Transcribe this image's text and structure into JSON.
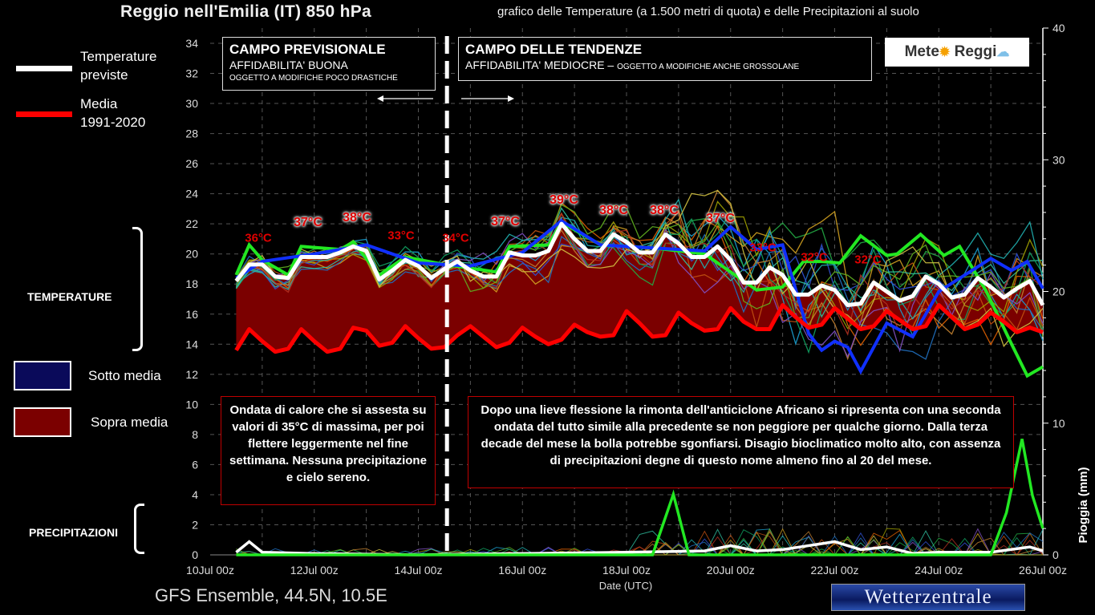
{
  "title": {
    "main": "Reggio nell'Emilia  (IT)  850 hPa",
    "sub": "grafico delle Temperature  (a 1.500 metri di quota) e delle Precipitazioni al suolo"
  },
  "legend": {
    "forecast_label_1": "Temperature",
    "forecast_label_2": "previste",
    "mean_label_1": "Media",
    "mean_label_2": "1991-2020",
    "below_label": "Sotto media",
    "above_label": "Sopra media",
    "temperature_section": "TEMPERATURE",
    "precip_section": "PRECIPITAZIONI"
  },
  "boxes": {
    "forecast": {
      "title": "CAMPO PREVISIONALE",
      "reliability": "AFFIDABILITA' BUONA",
      "note": "OGGETTO A MODIFICHE POCO DRASTICHE"
    },
    "trend": {
      "title": "CAMPO DELLE TENDENZE",
      "reliability": "AFFIDABILITA' MEDIOCRE",
      "dash": " – ",
      "note": "OGGETTO A MODIFICHE ANCHE GROSSOLANE"
    }
  },
  "logo": {
    "left": "Mete",
    "right": "Reggi"
  },
  "annotations": {
    "left": "Ondata di calore che si assesta su valori di 35°C di massima, per poi flettere leggermente nel fine settimana. Nessuna precipitazione e cielo sereno.",
    "right": "Dopo una lieve flessione la rimonta dell'anticiclone Africano si ripresenta con una seconda ondata del tutto simile alla precedente se non peggiore per qualche giorno. Dalla terza decade del mese la bolla potrebbe sgonfiarsi. Disagio bioclimatico molto alto, con assenza di precipitazioni degne di questo nome almeno fino al 20 del mese."
  },
  "max_temp_labels": [
    "36°C",
    "37°C",
    "38°C",
    "33°C",
    "34°C",
    "37°C",
    "39°C",
    "38°C",
    "38°C",
    "37°C",
    "33°C",
    "32°C",
    "32°C"
  ],
  "footer": {
    "model": "GFS Ensemble, 44.5N, 10.5E",
    "source": "Wetterzentrale"
  },
  "colors": {
    "forecast": "#ffffff",
    "mean": "#ff0000",
    "above": "#7b0000",
    "below": "#0a0a5a",
    "grid": "#555555"
  },
  "chart_data": {
    "type": "line",
    "title": "Reggio nell'Emilia (IT) 850 hPa",
    "xlabel": "Date (UTC)",
    "ylabel": "",
    "y2label": "Pioggia (mm)",
    "xlim": [
      0,
      16
    ],
    "ylim": [
      0,
      34
    ],
    "y2lim": [
      0,
      40
    ],
    "xticks": [
      {
        "d": 0,
        "label": "10Jul 00z"
      },
      {
        "d": 2,
        "label": "12Jul 00z"
      },
      {
        "d": 4,
        "label": "14Jul 00z"
      },
      {
        "d": 6,
        "label": "16Jul 00z"
      },
      {
        "d": 8,
        "label": "18Jul 00z"
      },
      {
        "d": 10,
        "label": "20Jul 00z"
      },
      {
        "d": 12,
        "label": "22Jul 00z"
      },
      {
        "d": 14,
        "label": "24Jul 00z"
      },
      {
        "d": 16,
        "label": "26Jul 00z"
      }
    ],
    "yticks": [
      0,
      2,
      4,
      6,
      8,
      10,
      12,
      14,
      16,
      18,
      20,
      22,
      24,
      26,
      28,
      30,
      32,
      34
    ],
    "y2ticks": [
      0,
      10,
      20,
      30,
      40
    ],
    "grid": true,
    "forecast_boundary_day": 4.55,
    "x_start_day": 0.5,
    "x_step_days": 0.25,
    "series": [
      {
        "name": "Temperature previste",
        "values": [
          18.2,
          19.3,
          19.3,
          18.5,
          18.4,
          19.8,
          19.8,
          19.8,
          20.1,
          20.5,
          20.2,
          18.3,
          18.9,
          19.6,
          19.2,
          18.4,
          19.0,
          19.5,
          18.9,
          18.5,
          18.5,
          20.1,
          19.9,
          19.9,
          20.2,
          22.0,
          21.0,
          20.2,
          20.2,
          21.3,
          20.8,
          20.1,
          20.1,
          21.3,
          20.7,
          19.8,
          19.8,
          20.5,
          19.6,
          18.1,
          18.1,
          19.1,
          18.6,
          17.3,
          17.3,
          17.9,
          17.6,
          16.6,
          16.7,
          18.1,
          17.5,
          16.9,
          17.2,
          18.5,
          18.0,
          17.1,
          17.3,
          18.4,
          17.8,
          17.1,
          17.7,
          18.2,
          16.6
        ]
      },
      {
        "name": "Media 1991-2020",
        "values": [
          13.6,
          15.0,
          14.2,
          13.5,
          13.7,
          15.0,
          14.2,
          13.5,
          13.7,
          15.1,
          14.9,
          13.9,
          14.1,
          15.2,
          14.4,
          13.7,
          13.8,
          14.6,
          15.2,
          14.5,
          13.8,
          14.1,
          15.1,
          14.5,
          14.0,
          14.3,
          15.3,
          14.8,
          14.5,
          14.6,
          16.2,
          15.4,
          14.5,
          14.6,
          16.1,
          15.4,
          14.9,
          15.0,
          16.4,
          15.5,
          15.0,
          15.0,
          16.6,
          15.8,
          15.1,
          15.3,
          16.4,
          15.7,
          15.0,
          15.2,
          16.2,
          15.6,
          15.0,
          15.2,
          16.6,
          15.8,
          15.0,
          15.3,
          16.1,
          15.5,
          14.8,
          15.1,
          14.8
        ]
      }
    ],
    "highlight_members": [
      {
        "name": "control-green",
        "color": "#22e822",
        "points": [
          [
            0.5,
            18.6
          ],
          [
            0.75,
            20.6
          ],
          [
            1.0,
            19.6
          ],
          [
            1.5,
            18.6
          ],
          [
            1.75,
            20.5
          ],
          [
            2.5,
            20.3
          ],
          [
            2.75,
            20.8
          ],
          [
            3.25,
            18.6
          ],
          [
            3.75,
            19.8
          ],
          [
            4.5,
            19.3
          ],
          [
            5.5,
            18.8
          ],
          [
            5.75,
            20.5
          ],
          [
            6.5,
            20.6
          ],
          [
            6.75,
            22.1
          ],
          [
            7.5,
            20.6
          ],
          [
            8.5,
            20.4
          ],
          [
            9.5,
            20.0
          ],
          [
            10.5,
            17.6
          ],
          [
            11.0,
            17.8
          ],
          [
            11.4,
            19.5
          ],
          [
            11.75,
            19.5
          ],
          [
            12.1,
            19.4
          ],
          [
            12.5,
            21.2
          ],
          [
            13.0,
            19.9
          ],
          [
            13.2,
            20.0
          ],
          [
            13.65,
            21.3
          ],
          [
            14.1,
            19.9
          ],
          [
            14.4,
            20.5
          ],
          [
            14.9,
            17.6
          ],
          [
            15.4,
            14.0
          ],
          [
            15.7,
            11.9
          ],
          [
            16.0,
            12.5
          ]
        ]
      },
      {
        "name": "operational-blue",
        "color": "#1030ff",
        "points": [
          [
            0.5,
            18.4
          ],
          [
            1.0,
            19.5
          ],
          [
            2.0,
            20.0
          ],
          [
            3.0,
            20.6
          ],
          [
            4.0,
            19.4
          ],
          [
            5.0,
            19.2
          ],
          [
            6.0,
            20.1
          ],
          [
            6.75,
            22.2
          ],
          [
            7.5,
            20.6
          ],
          [
            8.5,
            20.4
          ],
          [
            9.5,
            20.2
          ],
          [
            10.0,
            21.8
          ],
          [
            10.5,
            20.3
          ],
          [
            11.0,
            20.6
          ],
          [
            11.5,
            14.7
          ],
          [
            11.75,
            13.6
          ],
          [
            12.0,
            14.2
          ],
          [
            12.25,
            13.8
          ],
          [
            12.5,
            12.2
          ],
          [
            13.0,
            15.4
          ],
          [
            13.5,
            14.5
          ],
          [
            14.0,
            17.5
          ],
          [
            15.0,
            19.7
          ],
          [
            15.4,
            18.9
          ],
          [
            15.7,
            19.5
          ],
          [
            16.0,
            17.7
          ]
        ]
      }
    ],
    "precipitation": [
      {
        "name": "Pioggia media",
        "color": "#ffffff",
        "points": [
          [
            0.5,
            0.2
          ],
          [
            0.75,
            1.0
          ],
          [
            1.0,
            0.2
          ],
          [
            2,
            0.1
          ],
          [
            4,
            0
          ],
          [
            6,
            0.1
          ],
          [
            8,
            0.2
          ],
          [
            9.5,
            0.3
          ],
          [
            10,
            0.7
          ],
          [
            10.5,
            0.3
          ],
          [
            11,
            0.4
          ],
          [
            12,
            1.0
          ],
          [
            12.5,
            0.4
          ],
          [
            13,
            0.6
          ],
          [
            13.5,
            0.1
          ],
          [
            14,
            0.2
          ],
          [
            15,
            0.2
          ],
          [
            15.75,
            0.6
          ],
          [
            16,
            0.3
          ]
        ]
      },
      {
        "name": "Pioggia controllo",
        "color": "#22e822",
        "points": [
          [
            0.5,
            0
          ],
          [
            8.5,
            0
          ],
          [
            8.9,
            4.6
          ],
          [
            9.2,
            0
          ],
          [
            15,
            0
          ],
          [
            15.3,
            3.2
          ],
          [
            15.6,
            8.8
          ],
          [
            15.8,
            4.5
          ],
          [
            16,
            2.0
          ]
        ]
      }
    ]
  }
}
